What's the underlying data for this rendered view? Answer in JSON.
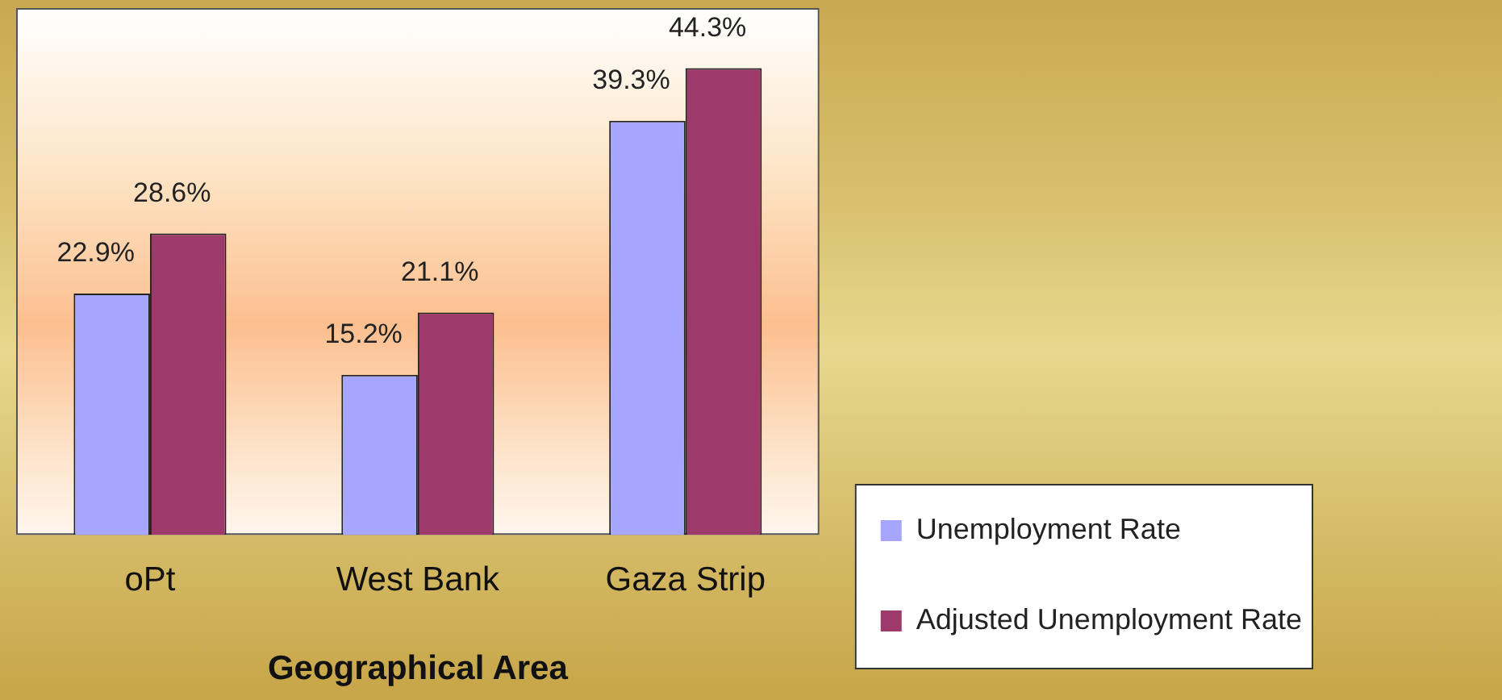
{
  "chart_data": {
    "type": "bar",
    "xlabel": "Geographical Area",
    "categories": [
      "oPt",
      "West Bank",
      "Gaza Strip"
    ],
    "series": [
      {
        "name": "Unemployment Rate",
        "color": "#a6a6ff",
        "values": [
          22.9,
          15.2,
          39.3
        ],
        "value_labels": [
          "22.9%",
          "15.2%",
          "39.3%"
        ]
      },
      {
        "name": "Adjusted Unemployment Rate",
        "color": "#9e3a6b",
        "values": [
          28.6,
          21.1,
          44.3
        ],
        "value_labels": [
          "28.6%",
          "21.1%",
          "44.3%"
        ]
      }
    ],
    "legend": "bottom right",
    "grid": false
  }
}
